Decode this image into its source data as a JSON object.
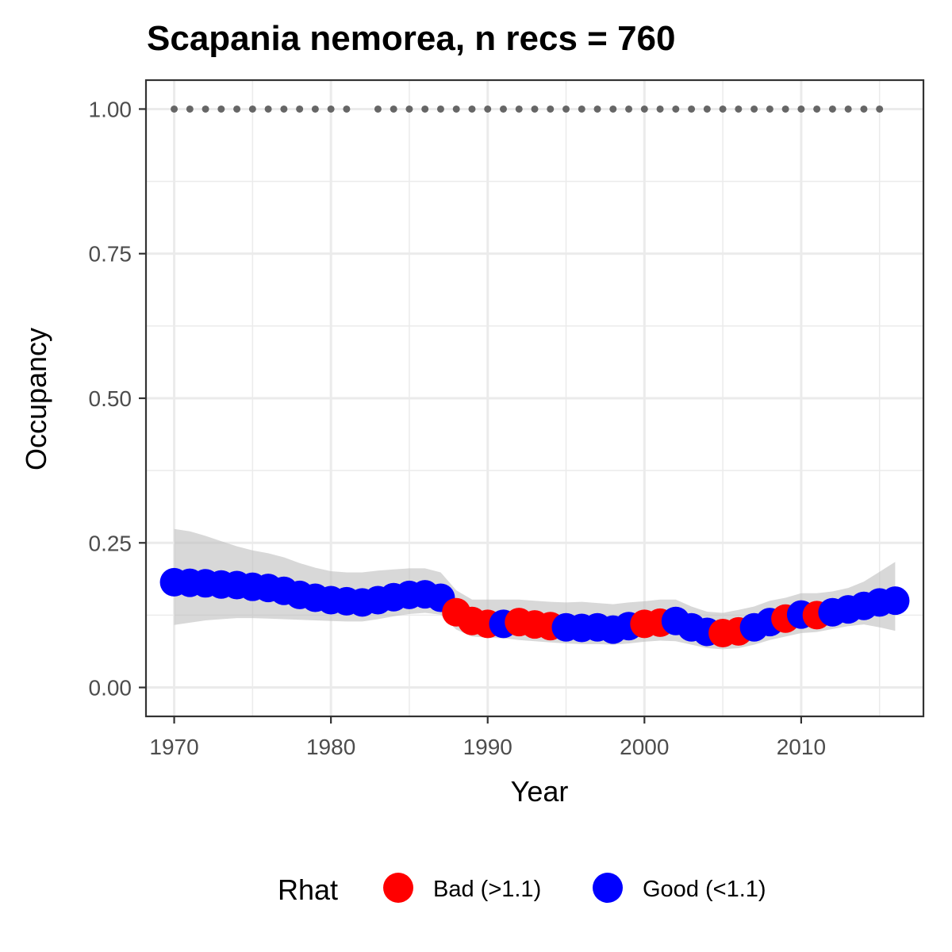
{
  "chart_data": {
    "type": "scatter",
    "title": "Scapania nemorea, n recs = 760",
    "xlabel": "Year",
    "ylabel": "Occupancy",
    "xlim": [
      1968.2,
      2017.8
    ],
    "ylim": [
      -0.05,
      1.05
    ],
    "x_ticks": [
      1970,
      1980,
      1990,
      2000,
      2010
    ],
    "x_minor_ticks": [
      1975,
      1985,
      1995,
      2005,
      2015
    ],
    "y_ticks": [
      0.0,
      0.25,
      0.5,
      0.75,
      1.0
    ],
    "y_tick_labels": [
      "0.00",
      "0.25",
      "0.50",
      "0.75",
      "1.00"
    ],
    "y_minor_ticks": [
      0.125,
      0.375,
      0.625,
      0.875
    ],
    "grid": true,
    "colors": {
      "Bad": "#ff0000",
      "Good": "#0000ff",
      "ribbon": "#bebebe",
      "record_dots": "#666666"
    },
    "legend": {
      "title": "Rhat",
      "position": "bottom",
      "entries": [
        {
          "key": "Bad",
          "label": "Bad (>1.1)",
          "color": "#ff0000"
        },
        {
          "key": "Good",
          "label": "Good (<1.1)",
          "color": "#0000ff"
        }
      ]
    },
    "series": [
      {
        "x": [
          1970,
          1971,
          1972,
          1973,
          1974,
          1975,
          1976,
          1977,
          1978,
          1979,
          1980,
          1981,
          1982,
          1983,
          1984,
          1985,
          1986,
          1987,
          1988,
          1989,
          1990,
          1991,
          1992,
          1993,
          1994,
          1995,
          1996,
          1997,
          1998,
          1999,
          2000,
          2001,
          2002,
          2003,
          2004,
          2005,
          2006,
          2007,
          2008,
          2009,
          2010,
          2011,
          2012,
          2013,
          2014,
          2015,
          2016
        ],
        "mean": [
          0.182,
          0.181,
          0.18,
          0.178,
          0.177,
          0.174,
          0.172,
          0.167,
          0.16,
          0.155,
          0.151,
          0.149,
          0.147,
          0.151,
          0.156,
          0.16,
          0.161,
          0.155,
          0.13,
          0.115,
          0.11,
          0.11,
          0.113,
          0.109,
          0.106,
          0.104,
          0.103,
          0.104,
          0.1,
          0.106,
          0.11,
          0.112,
          0.115,
          0.104,
          0.096,
          0.094,
          0.097,
          0.104,
          0.113,
          0.119,
          0.126,
          0.125,
          0.13,
          0.135,
          0.141,
          0.147,
          0.15
        ],
        "lower": [
          0.108,
          0.112,
          0.116,
          0.118,
          0.12,
          0.12,
          0.119,
          0.118,
          0.117,
          0.116,
          0.115,
          0.114,
          0.114,
          0.118,
          0.123,
          0.127,
          0.129,
          0.126,
          0.1,
          0.088,
          0.086,
          0.085,
          0.082,
          0.08,
          0.078,
          0.076,
          0.075,
          0.075,
          0.074,
          0.076,
          0.079,
          0.081,
          0.08,
          0.074,
          0.068,
          0.066,
          0.068,
          0.074,
          0.082,
          0.088,
          0.094,
          0.096,
          0.101,
          0.106,
          0.109,
          0.104,
          0.098
        ],
        "upper": [
          0.274,
          0.27,
          0.262,
          0.253,
          0.244,
          0.237,
          0.232,
          0.225,
          0.215,
          0.207,
          0.201,
          0.199,
          0.199,
          0.202,
          0.204,
          0.206,
          0.206,
          0.199,
          0.168,
          0.152,
          0.152,
          0.152,
          0.152,
          0.15,
          0.148,
          0.147,
          0.148,
          0.146,
          0.144,
          0.147,
          0.149,
          0.152,
          0.152,
          0.14,
          0.131,
          0.129,
          0.134,
          0.14,
          0.15,
          0.155,
          0.163,
          0.163,
          0.166,
          0.172,
          0.183,
          0.2,
          0.217
        ],
        "rhat": [
          "Good",
          "Good",
          "Good",
          "Good",
          "Good",
          "Good",
          "Good",
          "Good",
          "Good",
          "Good",
          "Good",
          "Good",
          "Good",
          "Good",
          "Good",
          "Good",
          "Good",
          "Good",
          "Bad",
          "Bad",
          "Bad",
          "Good",
          "Bad",
          "Bad",
          "Bad",
          "Good",
          "Good",
          "Good",
          "Good",
          "Good",
          "Bad",
          "Bad",
          "Good",
          "Good",
          "Good",
          "Bad",
          "Bad",
          "Good",
          "Good",
          "Bad",
          "Good",
          "Bad",
          "Good",
          "Good",
          "Good",
          "Good",
          "Good"
        ]
      }
    ],
    "record_years": [
      1970,
      1971,
      1972,
      1973,
      1974,
      1975,
      1976,
      1977,
      1978,
      1979,
      1980,
      1981,
      1983,
      1984,
      1985,
      1986,
      1987,
      1988,
      1989,
      1990,
      1991,
      1992,
      1993,
      1994,
      1995,
      1996,
      1997,
      1998,
      1999,
      2000,
      2001,
      2002,
      2003,
      2004,
      2005,
      2006,
      2007,
      2008,
      2009,
      2010,
      2011,
      2012,
      2013,
      2014,
      2015
    ],
    "record_y": 1.0
  }
}
